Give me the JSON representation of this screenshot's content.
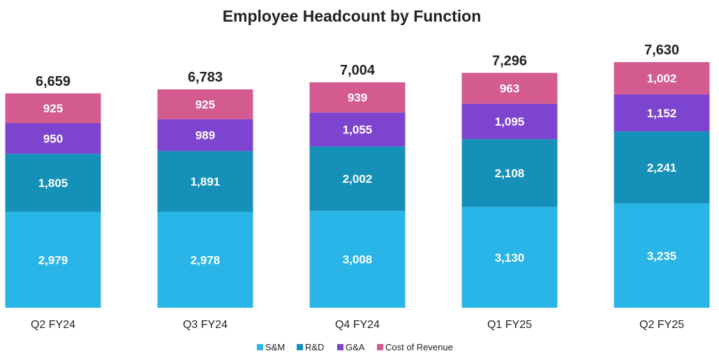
{
  "chart_data": {
    "type": "bar",
    "stacked": true,
    "title": "Employee Headcount by Function",
    "xlabel": "",
    "ylabel": "",
    "ylim": [
      0,
      7630
    ],
    "grid": false,
    "legend_position": "bottom-center",
    "categories": [
      "Q2 FY24",
      "Q3 FY24",
      "Q4 FY24",
      "Q1 FY25",
      "Q2 FY25"
    ],
    "series": [
      {
        "name": "S&M",
        "color": "#29B5E8",
        "values": [
          2979,
          2978,
          3008,
          3130,
          3235
        ],
        "labels": [
          "2,979",
          "2,978",
          "3,008",
          "3,130",
          "3,235"
        ]
      },
      {
        "name": "R&D",
        "color": "#1590B8",
        "values": [
          1805,
          1891,
          2002,
          2108,
          2241
        ],
        "labels": [
          "1,805",
          "1,891",
          "2,002",
          "2,108",
          "2,241"
        ]
      },
      {
        "name": "G&A",
        "color": "#7D44CF",
        "values": [
          950,
          989,
          1055,
          1095,
          1152
        ],
        "labels": [
          "950",
          "989",
          "1,055",
          "1,095",
          "1,152"
        ]
      },
      {
        "name": "Cost of Revenue",
        "color": "#D45B90",
        "values": [
          925,
          925,
          939,
          963,
          1002
        ],
        "labels": [
          "925",
          "925",
          "939",
          "963",
          "1,002"
        ]
      }
    ],
    "totals": [
      6659,
      6783,
      7004,
      7296,
      7630
    ],
    "total_labels": [
      "6,659",
      "6,783",
      "7,004",
      "7,296",
      "7,630"
    ]
  }
}
